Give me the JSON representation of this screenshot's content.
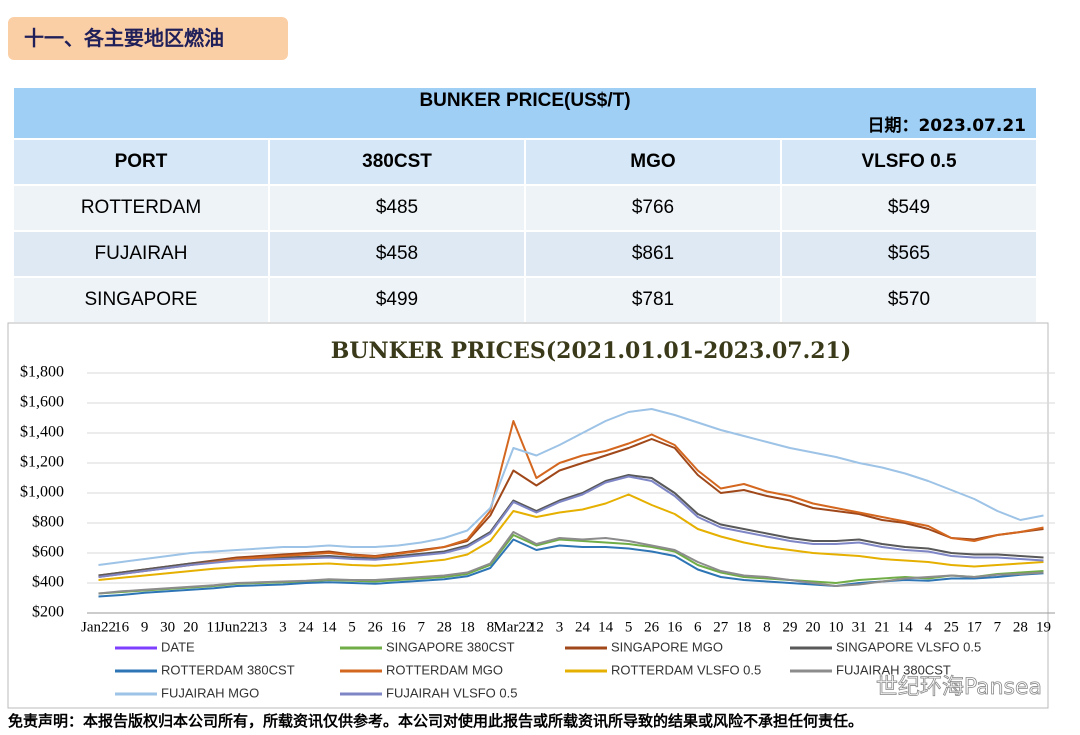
{
  "header": {
    "title": "十一、各主要地区燃油"
  },
  "table": {
    "title": "BUNKER PRICE(US$/T)",
    "date": "日期：2023.07.21",
    "columns": [
      "PORT",
      "380CST",
      "MGO",
      "VLSFO 0.5"
    ],
    "rows": [
      [
        "ROTTERDAM",
        "$485",
        "$766",
        "$549"
      ],
      [
        "FUJAIRAH",
        "$458",
        "$861",
        "$565"
      ],
      [
        "SINGAPORE",
        "$499",
        "$781",
        "$570"
      ]
    ]
  },
  "chart_data": {
    "type": "line",
    "title": "BUNKER PRICES(2021.01.01-2023.07.21)",
    "categories": [
      "Jan22",
      "16",
      "9",
      "30",
      "20",
      "11",
      "Jun22",
      "13",
      "3",
      "24",
      "14",
      "5",
      "26",
      "16",
      "7",
      "28",
      "18",
      "8",
      "Mar22",
      "12",
      "3",
      "24",
      "14",
      "5",
      "26",
      "16",
      "6",
      "27",
      "18",
      "8",
      "29",
      "20",
      "10",
      "31",
      "21",
      "14",
      "4",
      "25",
      "17",
      "7",
      "28",
      "19"
    ],
    "ylim": [
      200,
      1800
    ],
    "yticks": [
      {
        "value": 200,
        "label": "$200"
      },
      {
        "value": 400,
        "label": "$400"
      },
      {
        "value": 600,
        "label": "$600"
      },
      {
        "value": 800,
        "label": "$800"
      },
      {
        "value": 1000,
        "label": "$1,000"
      },
      {
        "value": 1200,
        "label": "$1,200"
      },
      {
        "value": 1400,
        "label": "$1,400"
      },
      {
        "value": 1600,
        "label": "$1,600"
      },
      {
        "value": 1800,
        "label": "$1,800"
      }
    ],
    "grid": true,
    "series": [
      {
        "name": "DATE",
        "color": "#7f3fff",
        "values": [
          null,
          null,
          null,
          null,
          null,
          null,
          null,
          null,
          null,
          null,
          null,
          null,
          null,
          null,
          null,
          null,
          null,
          null,
          null,
          null,
          null,
          null,
          null,
          null,
          null,
          null,
          null,
          null,
          null,
          null,
          null,
          null,
          null,
          null,
          null,
          null,
          null,
          null,
          null,
          null,
          null,
          null
        ]
      },
      {
        "name": "SINGAPORE 380CST",
        "color": "#70ad47",
        "values": [
          330,
          340,
          350,
          360,
          370,
          380,
          395,
          400,
          405,
          410,
          420,
          415,
          410,
          420,
          430,
          440,
          460,
          520,
          720,
          650,
          690,
          680,
          670,
          660,
          640,
          610,
          520,
          470,
          440,
          430,
          420,
          410,
          400,
          420,
          430,
          440,
          430,
          450,
          440,
          460,
          470,
          480
        ]
      },
      {
        "name": "SINGAPORE MGO",
        "color": "#a0481a",
        "values": [
          450,
          470,
          490,
          510,
          530,
          550,
          570,
          580,
          590,
          600,
          610,
          590,
          580,
          600,
          620,
          640,
          680,
          850,
          1150,
          1050,
          1150,
          1200,
          1250,
          1300,
          1360,
          1300,
          1120,
          1000,
          1020,
          980,
          950,
          900,
          880,
          860,
          820,
          800,
          760,
          700,
          690,
          720,
          740,
          760
        ]
      },
      {
        "name": "SINGAPORE VLSFO 0.5",
        "color": "#595959",
        "values": [
          450,
          470,
          490,
          510,
          530,
          545,
          560,
          565,
          570,
          575,
          580,
          570,
          565,
          580,
          595,
          610,
          650,
          740,
          950,
          880,
          950,
          1000,
          1080,
          1120,
          1100,
          1000,
          860,
          790,
          760,
          730,
          700,
          680,
          680,
          690,
          660,
          640,
          630,
          600,
          590,
          590,
          580,
          570
        ]
      },
      {
        "name": "ROTTERDAM 380CST",
        "color": "#2e75b6",
        "values": [
          310,
          320,
          335,
          345,
          355,
          365,
          380,
          385,
          390,
          400,
          405,
          400,
          395,
          405,
          415,
          425,
          445,
          500,
          690,
          620,
          650,
          640,
          640,
          630,
          610,
          580,
          490,
          440,
          420,
          410,
          400,
          390,
          380,
          400,
          410,
          420,
          415,
          430,
          430,
          440,
          455,
          465
        ]
      },
      {
        "name": "ROTTERDAM MGO",
        "color": "#d4671f",
        "values": [
          440,
          460,
          480,
          500,
          520,
          540,
          560,
          570,
          580,
          590,
          600,
          585,
          575,
          595,
          615,
          640,
          690,
          880,
          1480,
          1100,
          1200,
          1250,
          1280,
          1330,
          1390,
          1320,
          1150,
          1030,
          1060,
          1010,
          980,
          930,
          900,
          870,
          840,
          810,
          780,
          700,
          680,
          720,
          740,
          770
        ]
      },
      {
        "name": "ROTTERDAM VLSFO 0.5",
        "color": "#e6b000",
        "values": [
          420,
          435,
          450,
          465,
          480,
          495,
          505,
          515,
          520,
          525,
          530,
          520,
          515,
          525,
          540,
          555,
          590,
          680,
          880,
          840,
          870,
          890,
          930,
          990,
          920,
          860,
          760,
          710,
          670,
          640,
          620,
          600,
          590,
          580,
          560,
          550,
          540,
          520,
          510,
          520,
          530,
          540
        ]
      },
      {
        "name": "FUJAIRAH  380CST",
        "color": "#8c8c8c",
        "values": [
          330,
          345,
          355,
          365,
          375,
          385,
          400,
          405,
          410,
          415,
          425,
          420,
          420,
          430,
          440,
          450,
          470,
          530,
          740,
          660,
          700,
          690,
          700,
          680,
          650,
          620,
          540,
          480,
          450,
          440,
          420,
          400,
          380,
          390,
          410,
          430,
          440,
          450,
          440,
          455,
          460,
          470
        ]
      },
      {
        "name": "FUJAIRAH MGO",
        "color": "#9dc3e6",
        "values": [
          520,
          540,
          560,
          580,
          600,
          610,
          620,
          630,
          640,
          640,
          650,
          640,
          640,
          650,
          670,
          700,
          750,
          900,
          1300,
          1250,
          1320,
          1400,
          1480,
          1540,
          1560,
          1520,
          1470,
          1420,
          1380,
          1340,
          1300,
          1270,
          1240,
          1200,
          1170,
          1130,
          1080,
          1020,
          960,
          880,
          820,
          850
        ]
      },
      {
        "name": "FUJAIRAH VLSFO 0.5",
        "color": "#7f86c6",
        "values": [
          440,
          460,
          480,
          500,
          520,
          535,
          550,
          555,
          560,
          565,
          570,
          560,
          555,
          570,
          585,
          600,
          640,
          730,
          940,
          870,
          940,
          990,
          1070,
          1110,
          1080,
          980,
          840,
          770,
          740,
          710,
          680,
          660,
          660,
          670,
          640,
          620,
          610,
          580,
          570,
          570,
          560,
          550
        ]
      }
    ]
  },
  "footer": {
    "disclaimer": "免责声明：本报告版权归本公司所有，所载资讯仅供参考。本公司对使用此报告或所载资讯所导致的结果或风险不承担任何责任。",
    "watermark": "世纪环海Pansea"
  }
}
